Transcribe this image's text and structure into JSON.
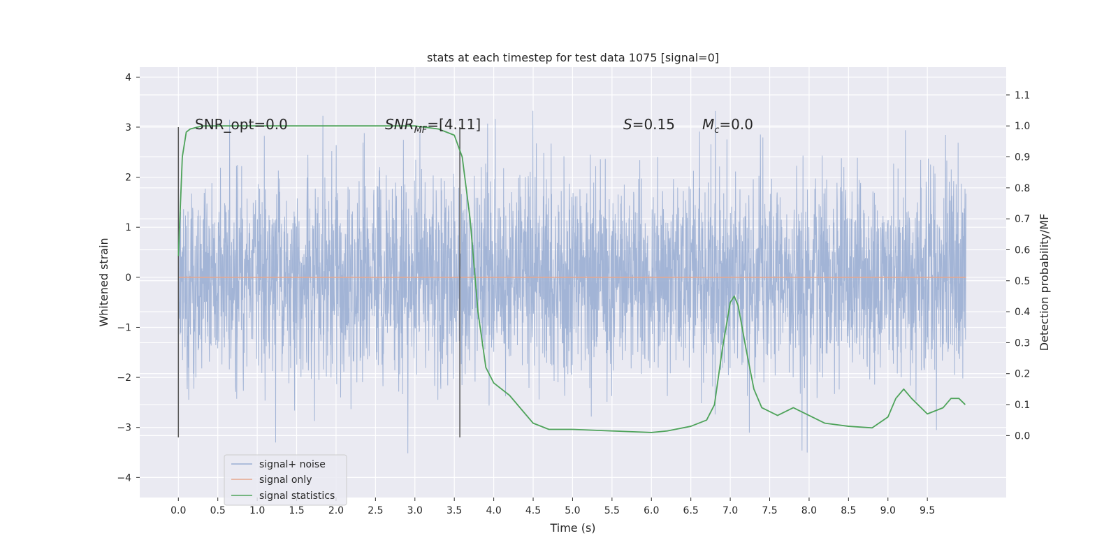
{
  "chart_data": {
    "type": "line",
    "title": "stats at each timestep for test data 1075 [signal=0]",
    "xlabel": "Time (s)",
    "ylabel_left": "Whitened strain",
    "ylabel_right": "Detection probability/MF",
    "xlim": [
      -0.49,
      10.5
    ],
    "ylim_left": [
      -4.4,
      4.2
    ],
    "ylim_right": [
      -0.2,
      1.19
    ],
    "x_ticks": [
      "0.0",
      "0.5",
      "1.0",
      "1.5",
      "2.0",
      "2.5",
      "3.0",
      "3.5",
      "4.0",
      "4.5",
      "5.0",
      "5.5",
      "6.0",
      "6.5",
      "7.0",
      "7.5",
      "8.0",
      "8.5",
      "9.0",
      "9.5"
    ],
    "y_ticks_left": [
      "4",
      "3",
      "2",
      "1",
      "0",
      "−1",
      "−2",
      "−3",
      "−4"
    ],
    "y_ticks_right": [
      "1.1",
      "1.0",
      "0.9",
      "0.8",
      "0.7",
      "0.6",
      "0.5",
      "0.4",
      "0.3",
      "0.2",
      "0.1",
      "0.0"
    ],
    "grid": true,
    "legend_position": "lower-left",
    "annotations": {
      "snr_opt": "SNR_opt=0.0",
      "snr_mf_sym": "SNR",
      "snr_mf_sub": "MF",
      "snr_mf_val": "=[4.11]",
      "s_sym": "S",
      "s_val": "=0.15",
      "mc_sym": "M",
      "mc_sub": "c",
      "mc_val": "=0.0"
    },
    "vertical_markers_x": [
      0.0,
      3.57
    ],
    "vertical_markers_range": [
      -3.2,
      3.0
    ],
    "series": [
      {
        "name": "signal+ noise",
        "color": "#9aaed3",
        "axis": "left",
        "x_range": [
          0.0,
          9.99
        ],
        "typical_band": [
          -1.8,
          1.8
        ],
        "peak_band": [
          -4.0,
          3.8
        ]
      },
      {
        "name": "signal only",
        "color": "#e8a78c",
        "axis": "left",
        "x": [
          0.0,
          9.99
        ],
        "y": [
          0.0,
          0.0
        ]
      },
      {
        "name": "signal statistics",
        "color": "#4ea35a",
        "axis": "right",
        "x": [
          0.0,
          0.05,
          0.1,
          0.15,
          0.3,
          0.6,
          1.0,
          2.0,
          3.0,
          3.3,
          3.5,
          3.6,
          3.7,
          3.8,
          3.9,
          4.0,
          4.2,
          4.5,
          4.7,
          5.0,
          5.5,
          6.0,
          6.2,
          6.5,
          6.7,
          6.8,
          6.9,
          7.0,
          7.05,
          7.1,
          7.2,
          7.3,
          7.4,
          7.6,
          7.8,
          8.0,
          8.2,
          8.5,
          8.8,
          9.0,
          9.1,
          9.2,
          9.3,
          9.5,
          9.7,
          9.8,
          9.9,
          9.98
        ],
        "y": [
          0.58,
          0.9,
          0.98,
          0.99,
          1.0,
          1.0,
          1.0,
          1.0,
          1.0,
          0.99,
          0.97,
          0.9,
          0.7,
          0.4,
          0.22,
          0.17,
          0.13,
          0.04,
          0.02,
          0.02,
          0.015,
          0.01,
          0.015,
          0.03,
          0.05,
          0.1,
          0.28,
          0.43,
          0.45,
          0.42,
          0.28,
          0.15,
          0.09,
          0.065,
          0.09,
          0.065,
          0.04,
          0.03,
          0.025,
          0.06,
          0.12,
          0.15,
          0.12,
          0.07,
          0.09,
          0.12,
          0.12,
          0.1
        ]
      }
    ]
  }
}
